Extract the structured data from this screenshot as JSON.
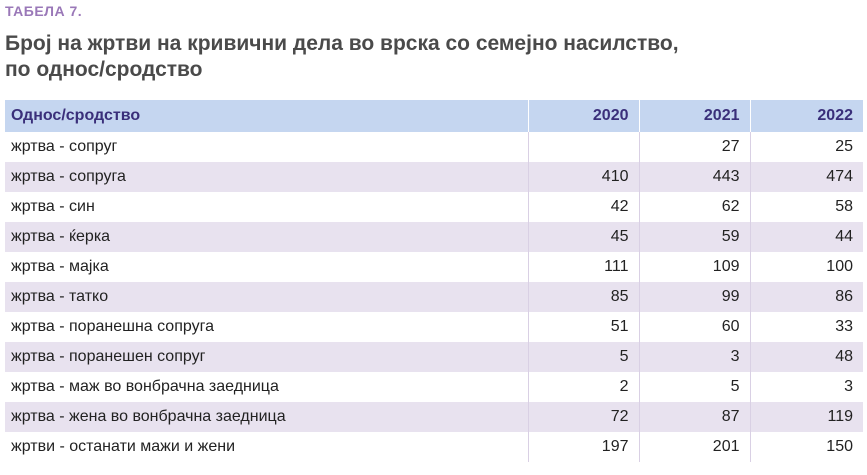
{
  "table_label": "ТАБЕЛА 7.",
  "title_line1": "Број на жртви на кривични дела во врска со семејно насилство,",
  "title_line2": "по однос/сродство",
  "columns": [
    "Однос/сродство",
    "2020",
    "2021",
    "2022"
  ],
  "rows": [
    [
      "жртва - сопруг",
      "",
      "27",
      "25"
    ],
    [
      "жртва - сопруга",
      "410",
      "443",
      "474"
    ],
    [
      "жртва - син",
      "42",
      "62",
      "58"
    ],
    [
      "жртва - ќерка",
      "45",
      "59",
      "44"
    ],
    [
      "жртва - мајка",
      "111",
      "109",
      "100"
    ],
    [
      "жртва - татко",
      "85",
      "99",
      "86"
    ],
    [
      "жртва - поранешна сопруга",
      "51",
      "60",
      "33"
    ],
    [
      "жртва - поранешен сопруг",
      "5",
      "3",
      "48"
    ],
    [
      "жртва - маж во вонбрачна заедница",
      "2",
      "5",
      "3"
    ],
    [
      "жртва - жена во вонбрачна заедница",
      "72",
      "87",
      "119"
    ],
    [
      "жртви - останати мажи и жени",
      "197",
      "201",
      "150"
    ]
  ],
  "colors": {
    "label": "#9a78b8",
    "title": "#4a4a4a",
    "header_bg": "#c5d6f0",
    "header_text": "#3a2f7a",
    "alt_row": "#e8e2ef"
  }
}
